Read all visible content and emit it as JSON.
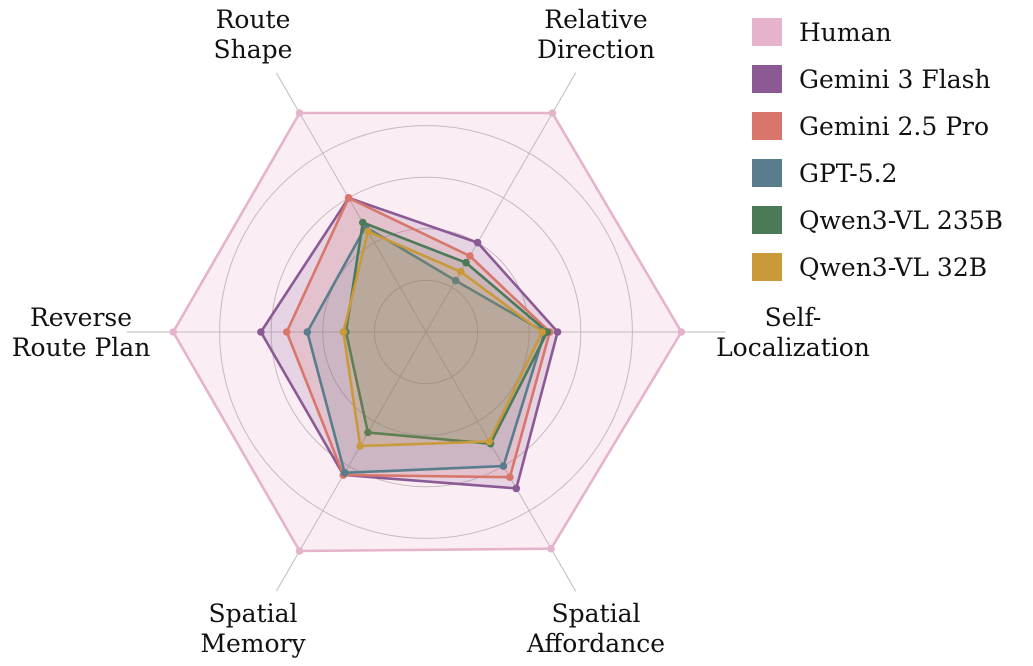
{
  "chart_data": {
    "type": "radar",
    "axes": [
      {
        "id": "self-localization",
        "lines": [
          "Self-",
          "Localization"
        ]
      },
      {
        "id": "relative-direction",
        "lines": [
          "Relative",
          "Direction"
        ]
      },
      {
        "id": "route-shape",
        "lines": [
          "Route",
          "Shape"
        ]
      },
      {
        "id": "reverse-route-plan",
        "lines": [
          "Reverse",
          "Route Plan"
        ]
      },
      {
        "id": "spatial-memory",
        "lines": [
          "Spatial",
          "Memory"
        ]
      },
      {
        "id": "spatial-affordance",
        "lines": [
          "Spatial",
          "Affordance"
        ]
      }
    ],
    "range": [
      0,
      100
    ],
    "grid_levels": [
      20,
      40,
      60,
      80
    ],
    "grid": true,
    "legend_position": "top-right",
    "series": [
      {
        "name": "Human",
        "color": "#e6b3cc",
        "fill_opacity": 0.22,
        "values": [
          99,
          98,
          98,
          98,
          98,
          97
        ]
      },
      {
        "name": "Gemini 3 Flash",
        "color": "#8b5a94",
        "fill_opacity": 0.18,
        "values": [
          51,
          40,
          60,
          64,
          64,
          70
        ]
      },
      {
        "name": "Gemini 2.5 Pro",
        "color": "#d9766b",
        "fill_opacity": 0.18,
        "values": [
          48,
          34,
          60,
          54,
          64,
          65
        ]
      },
      {
        "name": "GPT-5.2",
        "color": "#5a7d8e",
        "fill_opacity": 0.16,
        "values": [
          46,
          23,
          47,
          46,
          63,
          60
        ]
      },
      {
        "name": "Qwen3-VL 235B",
        "color": "#4a7a58",
        "fill_opacity": 0.16,
        "values": [
          47,
          31,
          49,
          31,
          45,
          50
        ]
      },
      {
        "name": "Qwen3-VL 32B",
        "color": "#c9993a",
        "fill_opacity": 0.16,
        "values": [
          45,
          27,
          45,
          32,
          51,
          49
        ]
      }
    ]
  }
}
